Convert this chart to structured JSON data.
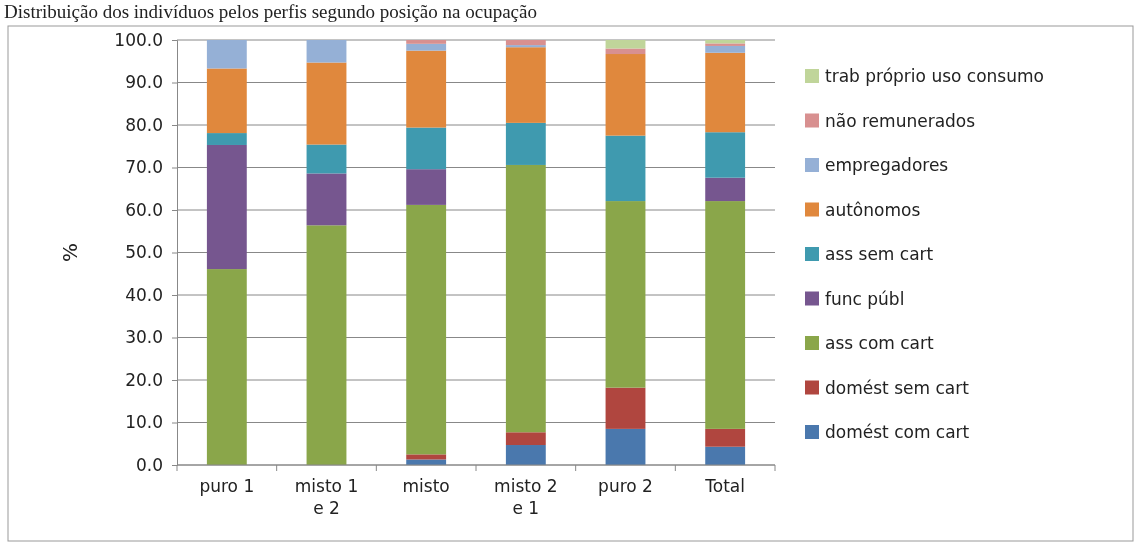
{
  "chart_data": {
    "type": "bar",
    "title": "Distribuição dos indivíduos pelos perfis segundo posição na ocupação",
    "ylabel": "%",
    "stacked": true,
    "legend": "right",
    "grid": "y",
    "categories": [
      "puro 1",
      "misto 1 e 2",
      "misto",
      "misto 2 e 1",
      "puro 2",
      "Total"
    ],
    "ylim": [
      0,
      100
    ],
    "yticks": [
      {
        "value": 0,
        "label": "0.0"
      },
      {
        "value": 10,
        "label": "10.0"
      },
      {
        "value": 20,
        "label": "20.0"
      },
      {
        "value": 30,
        "label": "30.0"
      },
      {
        "value": 40,
        "label": "40.0"
      },
      {
        "value": 50,
        "label": "50.0"
      },
      {
        "value": 60,
        "label": "60.0"
      },
      {
        "value": 70,
        "label": "70.0"
      },
      {
        "value": 80,
        "label": "80.0"
      },
      {
        "value": 90,
        "label": "90.0"
      },
      {
        "value": 100,
        "label": "100.0"
      }
    ],
    "series": [
      {
        "name": "domést com cart",
        "color": "#4a78ad",
        "values": [
          0,
          0,
          1.3,
          4.7,
          8.5,
          4.3
        ]
      },
      {
        "name": "domést sem cart",
        "color": "#b0463f",
        "values": [
          0,
          0,
          1.2,
          3.0,
          9.7,
          4.2
        ]
      },
      {
        "name": "ass com cart",
        "color": "#8aa64a",
        "values": [
          46.1,
          56.4,
          58.7,
          62.9,
          43.9,
          53.6
        ]
      },
      {
        "name": "func públ",
        "color": "#76568f",
        "values": [
          29.2,
          12.2,
          8.4,
          0,
          0,
          5.5
        ]
      },
      {
        "name": "ass sem cart",
        "color": "#3f9aaf",
        "values": [
          2.8,
          6.8,
          9.8,
          9.9,
          15.4,
          10.7
        ]
      },
      {
        "name": "autônomos",
        "color": "#e0883d",
        "values": [
          15.2,
          19.3,
          18.1,
          17.8,
          19.2,
          18.7
        ]
      },
      {
        "name": "empregadores",
        "color": "#95b0d6",
        "values": [
          6.7,
          5.3,
          1.6,
          0.5,
          0,
          1.6
        ]
      },
      {
        "name": "não remunerados",
        "color": "#d89090",
        "values": [
          0,
          0,
          0.9,
          1.2,
          1.3,
          0.6
        ]
      },
      {
        "name": "trab próprio uso consumo",
        "color": "#c0d59a",
        "values": [
          0,
          0,
          0,
          0,
          2.0,
          0.8
        ]
      }
    ]
  }
}
